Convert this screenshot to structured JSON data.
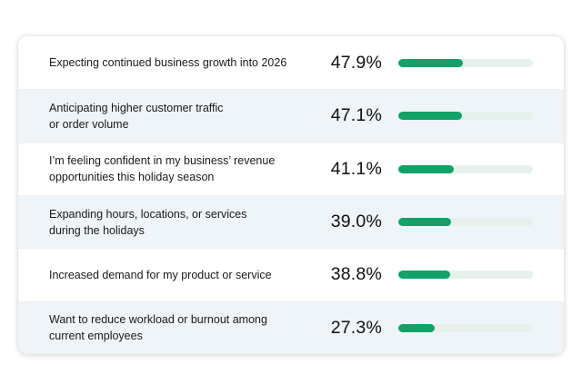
{
  "colors": {
    "bar_fill": "#12a167",
    "bar_track": "#e6f1ec",
    "row_shaded": "#eef4f8"
  },
  "chart_data": {
    "type": "bar",
    "orientation": "horizontal",
    "value_unit": "%",
    "max": 100,
    "categories": [
      "Expecting continued business growth into 2026",
      "Anticipating higher customer traffic\nor order volume",
      "I’m feeling confident in my business’ revenue\nopportunities this holiday season",
      "Expanding hours, locations, or services\nduring the holidays",
      "Increased demand for my product or service",
      "Want to reduce workload or burnout among\ncurrent employees"
    ],
    "values": [
      47.9,
      47.1,
      41.1,
      39.0,
      38.8,
      27.3
    ],
    "value_labels": [
      "47.9%",
      "47.1%",
      "41.1%",
      "39.0%",
      "38.8%",
      "27.3%"
    ]
  }
}
